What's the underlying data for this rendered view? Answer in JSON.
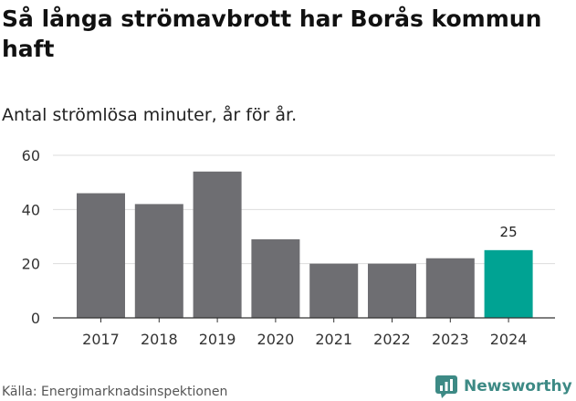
{
  "title": "Så långa strömavbrott har Borås kommun haft",
  "subtitle": "Antal strömlösa minuter, år för år.",
  "source": "Källa: Energimarknadsinspektionen",
  "brand": {
    "name": "Newsworthy",
    "icon": "newsworthy-logo-icon",
    "color": "#3d8a85"
  },
  "colors": {
    "bar": "#6e6e72",
    "highlight": "#00a393",
    "grid": "#dddddd",
    "text": "#333333"
  },
  "chart_data": {
    "type": "bar",
    "categories": [
      "2017",
      "2018",
      "2019",
      "2020",
      "2021",
      "2022",
      "2023",
      "2024"
    ],
    "values": [
      46,
      42,
      54,
      29,
      20,
      20,
      22,
      25
    ],
    "highlight_index": 7,
    "data_labels": [
      {
        "index": 7,
        "text": "25"
      }
    ],
    "yticks": [
      0,
      20,
      40,
      60
    ],
    "ylim": [
      0,
      60
    ],
    "grid": true,
    "xlabel": "",
    "ylabel": ""
  }
}
